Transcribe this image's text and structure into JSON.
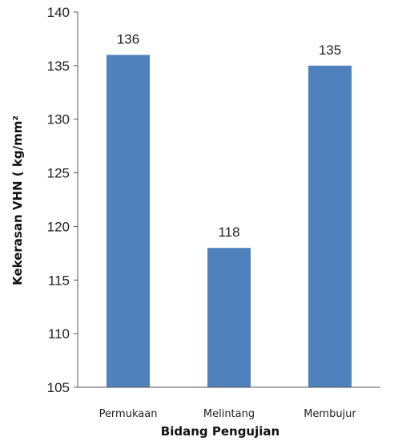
{
  "chart_data": {
    "type": "bar",
    "categories": [
      "Permukaan",
      "Melintang",
      "Membujur"
    ],
    "values": [
      136,
      118,
      135
    ],
    "data_labels": [
      "136",
      "118",
      "135"
    ],
    "title": "",
    "xlabel": "Bidang Pengujian",
    "ylabel": "Kekerasan VHN ( kg/mm²",
    "ylim": [
      105,
      140
    ],
    "yticks": [
      105,
      110,
      115,
      120,
      125,
      130,
      135,
      140
    ],
    "grid": false,
    "legend": "none",
    "bar_color": "#4f81bd"
  }
}
